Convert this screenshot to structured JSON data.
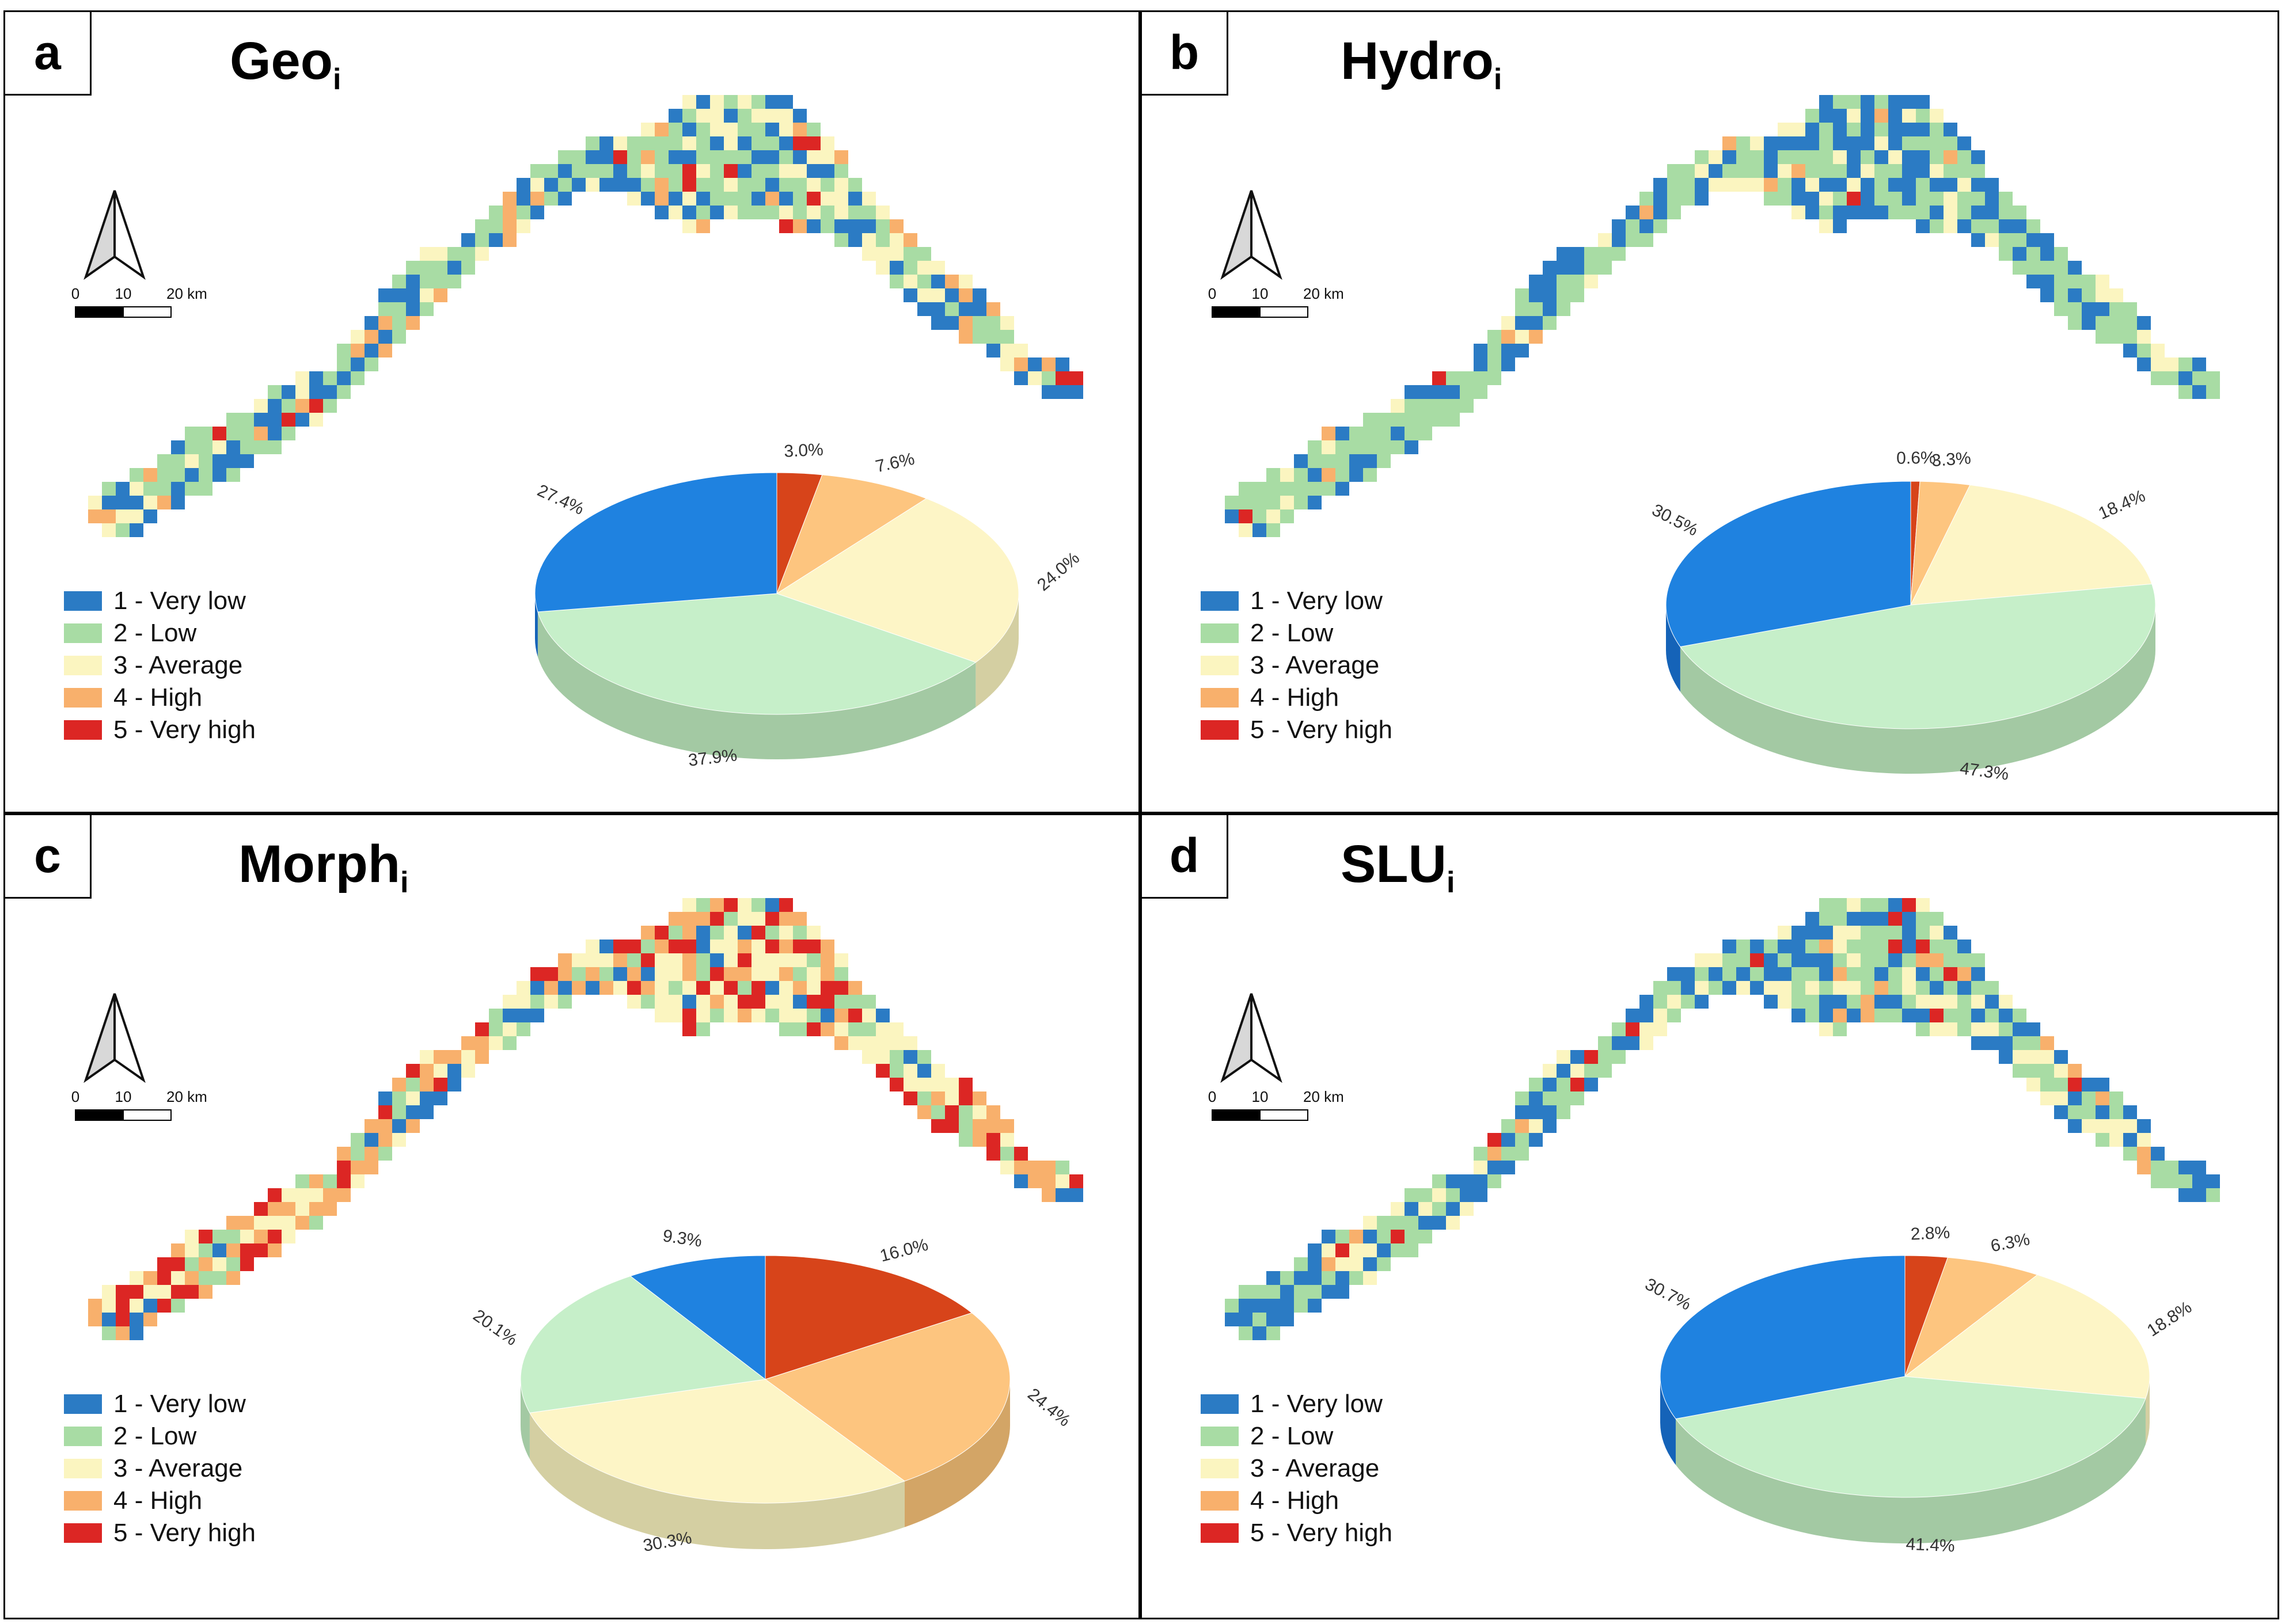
{
  "legend": {
    "items": [
      {
        "label": "1 - Very low",
        "color": "#2b7bc4"
      },
      {
        "label": "2 - Low",
        "color": "#a8dca4"
      },
      {
        "label": "3 - Average",
        "color": "#fbf5c0"
      },
      {
        "label": "4 - High",
        "color": "#f8b06c"
      },
      {
        "label": "5 - Very high",
        "color": "#dc2624"
      }
    ]
  },
  "scalebar": {
    "ticks": [
      "0",
      "10",
      "20 km"
    ]
  },
  "pie_colors": [
    "#1f82e0",
    "#c6efc9",
    "#fdf5c6",
    "#fdc57f",
    "#d7441a"
  ],
  "chart_data": [
    {
      "type": "pie",
      "letter": "a",
      "title_main": "Geo",
      "title_sub": "i",
      "categories": [
        "1 - Very low",
        "2 - Low",
        "3 - Average",
        "4 - High",
        "5 - Very high"
      ],
      "values": [
        27.4,
        37.9,
        24.0,
        7.6,
        3.0
      ],
      "labels": [
        "27.4%",
        "37.9%",
        "24.0%",
        "7.6%",
        "3.0%"
      ]
    },
    {
      "type": "pie",
      "letter": "b",
      "title_main": "Hydro",
      "title_sub": "i",
      "categories": [
        "1 - Very low",
        "2 - Low",
        "3 - Average",
        "4 - High",
        "5 - Very high"
      ],
      "values": [
        30.5,
        47.3,
        18.4,
        3.3,
        0.6
      ],
      "labels": [
        "30.5%",
        "47.3%",
        "18.4%",
        "3.3%",
        "0.6%"
      ]
    },
    {
      "type": "pie",
      "letter": "c",
      "title_main": "Morph",
      "title_sub": "i",
      "categories": [
        "1 - Very low",
        "2 - Low",
        "3 - Average",
        "4 - High",
        "5 - Very high"
      ],
      "values": [
        9.3,
        20.1,
        30.3,
        24.4,
        16.0
      ],
      "labels": [
        "9.3%",
        "20.1%",
        "30.3%",
        "24.4%",
        "16.0%"
      ]
    },
    {
      "type": "pie",
      "letter": "d",
      "title_main": "SLU",
      "title_sub": "i",
      "categories": [
        "1 - Very low",
        "2 - Low",
        "3 - Average",
        "4 - High",
        "5 - Very high"
      ],
      "values": [
        30.7,
        41.4,
        18.8,
        6.3,
        2.8
      ],
      "labels": [
        "30.7%",
        "41.4%",
        "18.8%",
        "6.3%",
        "2.8%"
      ]
    }
  ]
}
